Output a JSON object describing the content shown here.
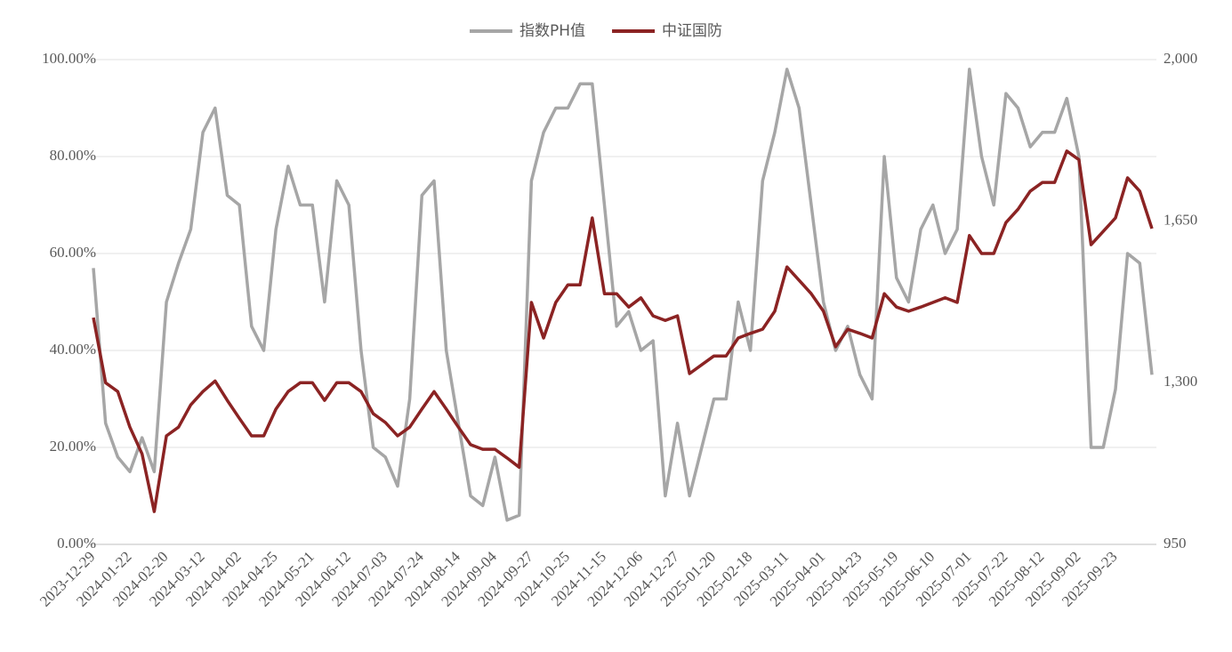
{
  "chart_data": {
    "type": "line",
    "legend": "top",
    "grid": true,
    "categories": [
      "2023-12-29",
      null,
      null,
      "2024-01-22",
      null,
      null,
      "2024-02-20",
      null,
      null,
      "2024-03-12",
      null,
      null,
      "2024-04-02",
      null,
      null,
      "2024-04-25",
      null,
      null,
      "2024-05-21",
      null,
      null,
      "2024-06-12",
      null,
      null,
      "2024-07-03",
      null,
      null,
      "2024-07-24",
      null,
      null,
      "2024-08-14",
      null,
      null,
      "2024-09-04",
      null,
      null,
      "2024-09-27",
      null,
      null,
      "2024-10-25",
      null,
      null,
      "2024-11-15",
      null,
      null,
      "2024-12-06",
      null,
      null,
      "2024-12-27",
      null,
      null,
      "2025-01-20",
      null,
      null,
      "2025-02-18",
      null,
      null,
      "2025-03-11",
      null,
      null,
      "2025-04-01",
      null,
      null,
      "2025-04-23",
      null,
      null,
      "2025-05-19",
      null,
      null,
      "2025-06-10",
      null,
      null,
      "2025-07-01",
      null,
      null,
      "2025-07-22",
      null,
      null,
      "2025-08-12",
      null,
      null,
      "2025-09-02",
      null,
      null,
      "2025-09-23",
      null,
      null,
      null
    ],
    "series": [
      {
        "name": "指数PH值",
        "color": "#a6a6a6",
        "axis": "y",
        "values": [
          57,
          25,
          18,
          15,
          22,
          15,
          50,
          58,
          65,
          85,
          90,
          72,
          70,
          45,
          40,
          65,
          78,
          70,
          70,
          50,
          75,
          70,
          40,
          20,
          18,
          12,
          30,
          72,
          75,
          40,
          25,
          10,
          8,
          18,
          5,
          6,
          75,
          85,
          90,
          90,
          95,
          95,
          70,
          45,
          48,
          40,
          42,
          10,
          25,
          10,
          20,
          30,
          30,
          50,
          40,
          75,
          85,
          98,
          90,
          70,
          50,
          40,
          45,
          35,
          30,
          80,
          55,
          50,
          65,
          70,
          60,
          65,
          98,
          80,
          70,
          93,
          90,
          82,
          85,
          85,
          92,
          80,
          20,
          20,
          32,
          60,
          58,
          35
        ]
      },
      {
        "name": "中证国防",
        "color": "#8b2323",
        "axis": "y2",
        "values": [
          1441,
          1300,
          1281,
          1204,
          1146,
          1021,
          1185,
          1204,
          1252,
          1281,
          1304,
          1262,
          1223,
          1185,
          1185,
          1243,
          1281,
          1300,
          1300,
          1262,
          1300,
          1300,
          1281,
          1233,
          1214,
          1185,
          1204,
          1243,
          1281,
          1243,
          1204,
          1166,
          1156,
          1156,
          1137,
          1117,
          1474,
          1397,
          1474,
          1512,
          1512,
          1657,
          1493,
          1493,
          1464,
          1484,
          1445,
          1435,
          1445,
          1320,
          1339,
          1358,
          1358,
          1397,
          1407,
          1416,
          1455,
          1551,
          1522,
          1493,
          1455,
          1378,
          1416,
          1407,
          1397,
          1493,
          1464,
          1455,
          1464,
          1474,
          1484,
          1474,
          1619,
          1580,
          1580,
          1647,
          1676,
          1715,
          1734,
          1734,
          1802,
          1783,
          1599,
          1628,
          1657,
          1744,
          1715,
          1634
        ]
      }
    ],
    "ylim": [
      0,
      100
    ],
    "yticks": [
      {
        "value": 0,
        "label": "0.00%"
      },
      {
        "value": 20,
        "label": "20.00%"
      },
      {
        "value": 40,
        "label": "40.00%"
      },
      {
        "value": 60,
        "label": "60.00%"
      },
      {
        "value": 80,
        "label": "80.00%"
      },
      {
        "value": 100,
        "label": "100.00%"
      }
    ],
    "y2lim": [
      950,
      2000
    ],
    "y2ticks": [
      950,
      {
        "value": 1300,
        "label": "1,300"
      },
      {
        "value": 1650,
        "label": "1,650"
      },
      {
        "value": 2000,
        "label": "2,000"
      }
    ]
  }
}
